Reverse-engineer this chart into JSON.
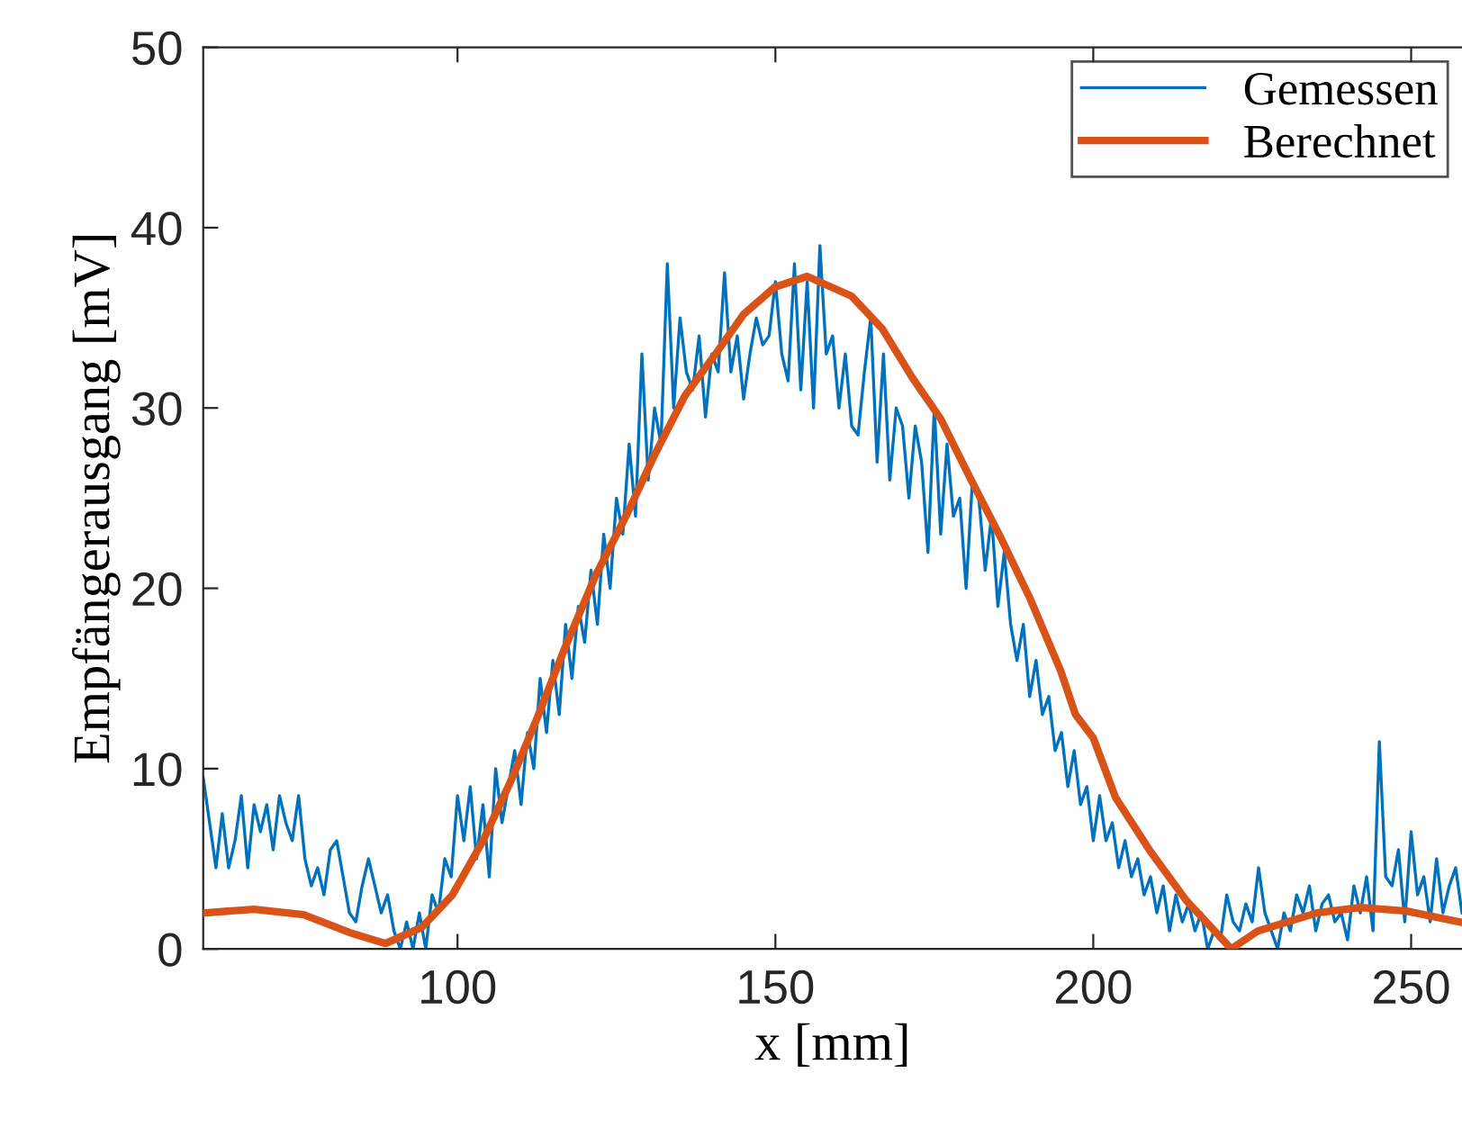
{
  "chart_data": {
    "type": "line",
    "xlabel": "x [mm]",
    "ylabel": "Empfängerausgang [mV]",
    "xlim": [
      60,
      258
    ],
    "ylim": [
      0,
      50
    ],
    "xticks": [
      100,
      150,
      200,
      250
    ],
    "yticks": [
      0,
      10,
      20,
      30,
      40,
      50
    ],
    "grid": false,
    "legend": "top right",
    "marker": "none",
    "line_style": "solid",
    "series": [
      {
        "name": "Gemessen",
        "color": "#0072bd",
        "x": [
          60,
          61,
          62,
          63,
          64,
          65,
          66,
          67,
          68,
          69,
          70,
          71,
          72,
          73,
          74,
          75,
          76,
          77,
          78,
          79,
          80,
          81,
          82,
          83,
          84,
          85,
          86,
          87,
          88,
          89,
          90,
          91,
          92,
          93,
          94,
          95,
          96,
          97,
          98,
          99,
          100,
          101,
          102,
          103,
          104,
          105,
          106,
          107,
          108,
          109,
          110,
          111,
          112,
          113,
          114,
          115,
          116,
          117,
          118,
          119,
          120,
          121,
          122,
          123,
          124,
          125,
          126,
          127,
          128,
          129,
          130,
          131,
          132,
          133,
          134,
          135,
          136,
          137,
          138,
          139,
          140,
          141,
          142,
          143,
          144,
          145,
          146,
          147,
          148,
          149,
          150,
          151,
          152,
          153,
          154,
          155,
          156,
          157,
          158,
          159,
          160,
          161,
          162,
          163,
          164,
          165,
          166,
          167,
          168,
          169,
          170,
          171,
          172,
          173,
          174,
          175,
          176,
          177,
          178,
          179,
          180,
          181,
          182,
          183,
          184,
          185,
          186,
          187,
          188,
          189,
          190,
          191,
          192,
          193,
          194,
          195,
          196,
          197,
          198,
          199,
          200,
          201,
          202,
          203,
          204,
          205,
          206,
          207,
          208,
          209,
          210,
          211,
          212,
          213,
          214,
          215,
          216,
          217,
          218,
          219,
          220,
          221,
          222,
          223,
          224,
          225,
          226,
          227,
          228,
          229,
          230,
          231,
          232,
          233,
          234,
          235,
          236,
          237,
          238,
          239,
          240,
          241,
          242,
          243,
          244,
          245,
          246,
          247,
          248,
          249,
          250,
          251,
          252,
          253,
          254,
          255,
          256,
          257,
          258
        ],
        "values": [
          9.5,
          7,
          4.5,
          7.5,
          4.5,
          6,
          8.5,
          4.5,
          8,
          6.5,
          8,
          5.5,
          8.5,
          7,
          6,
          8.5,
          5,
          3.5,
          4.5,
          3,
          5.5,
          6,
          4,
          2,
          1.5,
          3.5,
          5,
          3.5,
          2,
          3,
          1,
          0,
          1.5,
          0,
          2,
          0,
          3,
          2,
          5,
          4,
          8.5,
          6,
          9,
          5,
          8,
          4,
          10,
          7,
          9,
          11,
          8,
          12,
          10,
          15,
          12,
          16,
          13,
          18,
          15,
          19,
          17,
          21,
          18,
          23,
          20,
          25,
          23,
          28,
          24,
          33,
          26,
          30,
          28,
          38,
          30,
          35,
          32,
          31,
          34,
          29.5,
          33,
          32,
          37.5,
          32,
          34,
          30.5,
          33,
          35,
          33.5,
          34,
          37,
          33,
          31.5,
          38,
          31,
          37,
          30,
          39,
          33,
          34,
          30,
          33,
          29,
          28.5,
          32,
          35,
          27,
          33,
          26,
          30,
          29,
          25,
          29,
          27,
          22,
          30,
          23,
          28,
          24,
          25,
          20,
          26,
          25,
          21,
          24,
          19,
          22,
          18,
          16,
          18,
          14,
          16,
          13,
          14,
          11,
          12,
          9,
          11,
          8,
          9,
          6,
          8.5,
          6,
          7,
          4.5,
          6,
          4,
          5,
          3,
          4,
          2,
          3.5,
          1,
          3,
          1.5,
          2.5,
          1,
          2,
          0,
          1,
          0.5,
          3,
          1.5,
          1,
          2.5,
          1.5,
          4.5,
          2,
          1,
          0,
          2,
          1,
          3,
          2,
          3.5,
          1,
          2.5,
          3,
          1.5,
          2,
          0.5,
          3.5,
          2,
          4,
          1,
          11.5,
          4,
          3.5,
          5.5,
          1.5,
          6.5,
          3,
          4,
          1.5,
          5,
          2,
          3.5,
          4.5,
          2
        ]
      },
      {
        "name": "Berechnet",
        "color": "#d95319",
        "x": [
          60.3,
          68,
          75.8,
          83.1,
          88.7,
          94.4,
          99.2,
          104,
          108.5,
          112.4,
          116.9,
          121.7,
          126.5,
          131,
          135.8,
          140.6,
          145,
          149.9,
          155,
          162,
          166.8,
          171.5,
          176,
          180.8,
          185.6,
          190.1,
          194.9,
          197.2,
          200,
          203.5,
          209,
          214.6,
          221.7,
          225.9,
          235.2,
          242,
          249.3,
          257.5
        ],
        "values": [
          2.0,
          2.2,
          1.9,
          0.9,
          0.3,
          1.2,
          3.0,
          6.0,
          9.4,
          12.7,
          16.7,
          20.7,
          24.0,
          27.4,
          30.7,
          33.0,
          35.2,
          36.7,
          37.3,
          36.2,
          34.4,
          31.7,
          29.4,
          26.0,
          22.7,
          19.4,
          15.4,
          13.0,
          11.7,
          8.4,
          5.4,
          2.7,
          0,
          1.0,
          2.0,
          2.3,
          2.1,
          1.5
        ]
      }
    ]
  }
}
